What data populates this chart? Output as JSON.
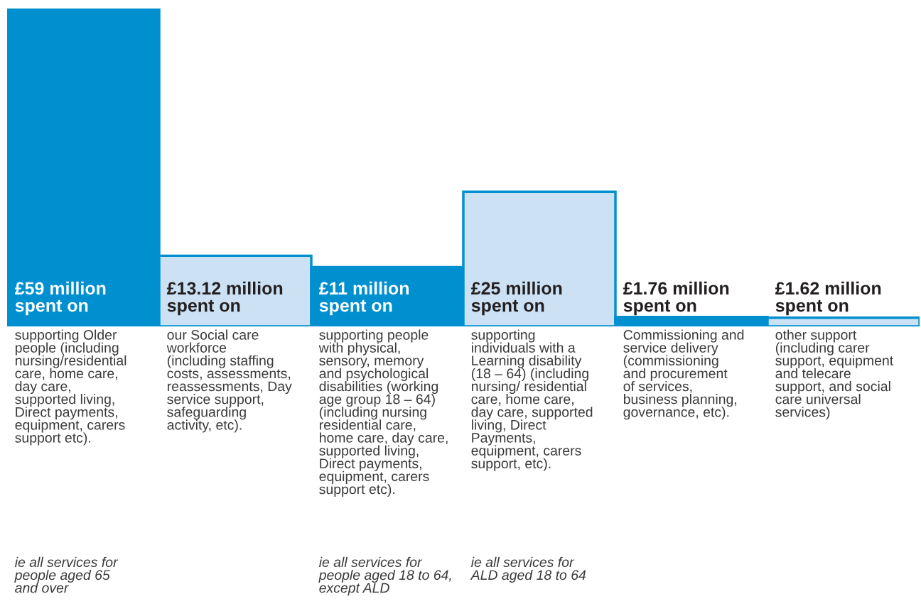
{
  "chart_data": {
    "type": "bar",
    "categories": [
      "supporting Older\npeople (including\nnursing/residential\ncare, home care,\nday care,\nsupported living,\nDirect payments,\nequipment, carers\nsupport etc).",
      "our Social care\nworkforce\n(including staffing\ncosts, assessments,\nreassessments, Day\nservice support,\nsafeguarding\nactivity, etc).",
      "supporting people\nwith physical,\nsensory, memory\nand psychological\ndisabilities (working\nage group 18 – 64)\n(including nursing\nresidential care,\nhome care, day care,\nsupported living,\nDirect payments,\nequipment, carers\nsupport etc).",
      "supporting\nindividuals with a\nLearning disability\n(18 – 64) (including\nnursing/ residential\ncare, home care,\nday care, supported\nliving, Direct\nPayments,\nequipment, carers\nsupport, etc).",
      "Commissioning and\nservice delivery\n(commissioning\nand procurement\nof services,\nbusiness planning,\ngovernance, etc).",
      "other support\n(including carer\nsupport, equipment\nand telecare\nsupport, and social\ncare universal\nservices)"
    ],
    "values": [
      59,
      13.12,
      11,
      25,
      1.76,
      1.62
    ],
    "value_labels": [
      "£59 million\nspent on",
      "£13.12 million\nspent on",
      "£11 million\nspent on",
      "£25 million\nspent on",
      "£1.76 million\nspent on",
      "£1.62 million\nspent on"
    ],
    "colors": [
      "#0090d0",
      "#cce2f4",
      "#0090d0",
      "#cce2f4",
      "#0090d0",
      "#cce2f4"
    ],
    "annotations": [
      "ie all services for\npeople aged 65\nand over",
      "ie all services for\npeople aged 18 to 64,\nexcept ALD",
      "ie all services for\nALD aged 18 to 64"
    ]
  }
}
